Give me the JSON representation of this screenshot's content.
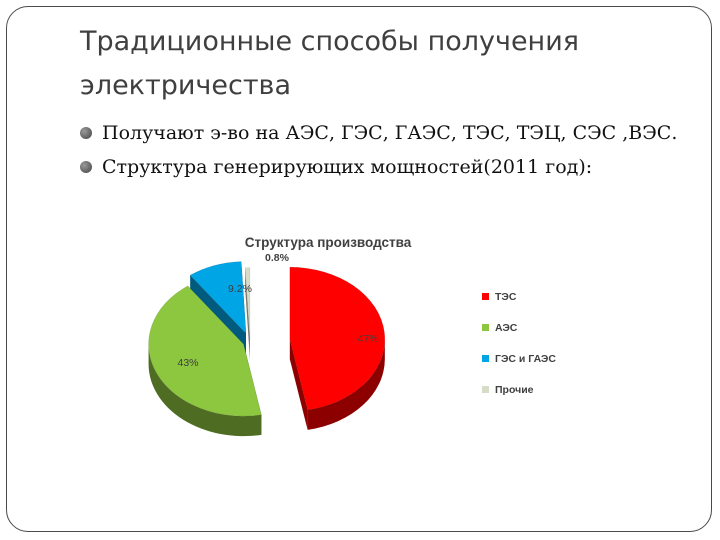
{
  "slide": {
    "title": "Традиционные способы получения электричества",
    "bullets": [
      "Получают э-во на АЭС, ГЭС, ГАЭС, ТЭС, ТЭЦ, СЭС ,ВЭС.",
      "Структура генерирующих мощностей(2011 год):"
    ]
  },
  "chart_data": {
    "type": "pie",
    "title": "Структура производства",
    "legend_position": "right",
    "three_d": true,
    "slices": [
      {
        "name": "ТЭС",
        "value": 47,
        "label": "47%",
        "color": "#ff0000"
      },
      {
        "name": "АЭС",
        "value": 43,
        "label": "43%",
        "color": "#8dc63f"
      },
      {
        "name": "ГЭС и ГАЭС",
        "value": 9.2,
        "label": "9.2%",
        "color": "#00a5e6"
      },
      {
        "name": "Прочие",
        "value": 0.8,
        "label": "0.8%",
        "color": "#d7dcc8"
      }
    ]
  }
}
